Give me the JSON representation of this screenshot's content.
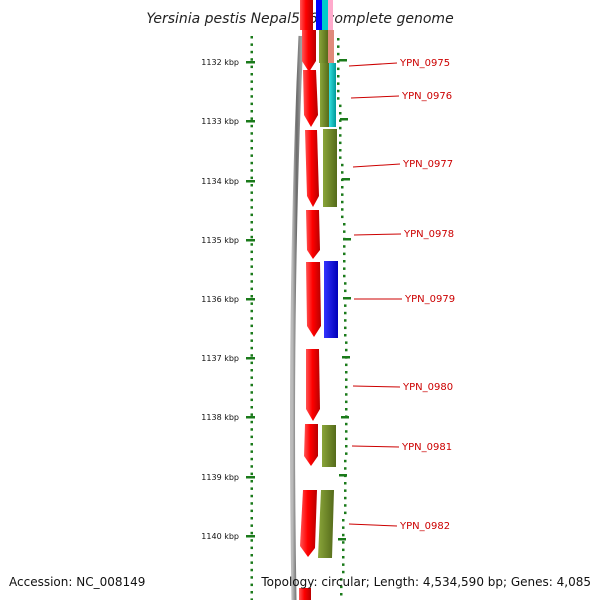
{
  "header": {
    "title": "Yersinia pestis Nepal516, complete genome"
  },
  "footer": {
    "accession": "Accession: NC_008149",
    "topology": "Topology: circular; Length: 4,534,590 bp; Genes: 4,085"
  },
  "ruler": {
    "labels": [
      "1132 kbp",
      "1133 kbp",
      "1134 kbp",
      "1135 kbp",
      "1136 kbp",
      "1137 kbp",
      "1138 kbp",
      "1139 kbp",
      "1140 kbp"
    ]
  },
  "genes": [
    {
      "label": "YPN_0975"
    },
    {
      "label": "YPN_0976"
    },
    {
      "label": "YPN_0977"
    },
    {
      "label": "YPN_0978"
    },
    {
      "label": "YPN_0979"
    },
    {
      "label": "YPN_0980"
    },
    {
      "label": "YPN_0981"
    },
    {
      "label": "YPN_0982"
    }
  ],
  "colors": {
    "cds": "#ff0000",
    "backbone": "#888888",
    "ruler": "#1a7a1a",
    "label": "#cc0000",
    "olive": "#6b8e23",
    "blue": "#0000ff",
    "cyan": "#00cccc",
    "salmon": "#e08a7a"
  }
}
